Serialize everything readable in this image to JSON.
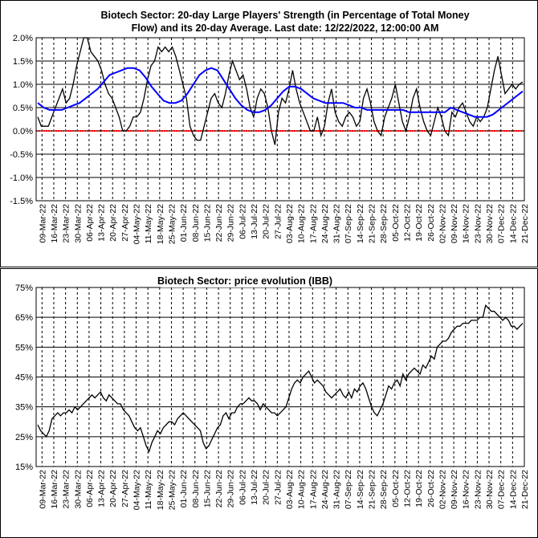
{
  "chart_data": [
    {
      "type": "line",
      "title_line1": "Biotech Sector: 20-day Large Players' Strength (in Percentage of Total Money",
      "title_line2": "Flow) and its 20-day Average. Last date: 12/22/2022, 12:00:00 AM",
      "ylim": [
        -1.5,
        2.0
      ],
      "y_ticks": [
        -1.5,
        -1.0,
        -0.5,
        0.0,
        0.5,
        1.0,
        1.5,
        2.0
      ],
      "y_tick_labels": [
        "-1.5%",
        "-1.0%",
        "-0.5%",
        "0.0%",
        "0.5%",
        "1.0%",
        "1.5%",
        "2.0%"
      ],
      "x_tick_labels": [
        "09-Mar-22",
        "16-Mar-22",
        "23-Mar-22",
        "30-Mar-22",
        "06-Apr-22",
        "13-Apr-22",
        "20-Apr-22",
        "27-Apr-22",
        "04-May-22",
        "11-May-22",
        "18-May-22",
        "25-May-22",
        "01-Jun-22",
        "08-Jun-22",
        "15-Jun-22",
        "22-Jun-22",
        "29-Jun-22",
        "06-Jul-22",
        "13-Jul-22",
        "20-Jul-22",
        "27-Jul-22",
        "03-Aug-22",
        "10-Aug-22",
        "17-Aug-22",
        "24-Aug-22",
        "31-Aug-22",
        "07-Sep-22",
        "14-Sep-22",
        "21-Sep-22",
        "28-Sep-22",
        "05-Oct-22",
        "12-Oct-22",
        "19-Oct-22",
        "26-Oct-22",
        "02-Nov-22",
        "09-Nov-22",
        "16-Nov-22",
        "23-Nov-22",
        "30-Nov-22",
        "07-Dec-22",
        "14-Dec-22",
        "21-Dec-22"
      ],
      "series": [
        {
          "color": "#000000",
          "values": [
            0.3,
            0.1,
            0.1,
            0.1,
            0.3,
            0.5,
            0.7,
            0.9,
            0.6,
            0.7,
            1.0,
            1.4,
            1.7,
            2.0,
            2.0,
            1.7,
            1.6,
            1.5,
            1.3,
            1.0,
            0.8,
            0.7,
            0.5,
            0.3,
            0.0,
            0.0,
            0.1,
            0.3,
            0.3,
            0.4,
            0.7,
            1.1,
            1.4,
            1.5,
            1.8,
            1.7,
            1.8,
            1.7,
            1.8,
            1.6,
            1.3,
            1.0,
            0.7,
            0.1,
            -0.1,
            -0.2,
            -0.2,
            0.1,
            0.4,
            0.7,
            0.8,
            0.6,
            0.5,
            0.8,
            1.2,
            1.5,
            1.3,
            1.1,
            1.2,
            0.9,
            0.5,
            0.3,
            0.7,
            0.9,
            0.8,
            0.5,
            0.0,
            -0.3,
            0.4,
            0.7,
            0.6,
            0.9,
            1.3,
            0.9,
            0.6,
            0.4,
            0.2,
            0.0,
            0.0,
            0.3,
            -0.1,
            0.1,
            0.6,
            0.9,
            0.4,
            0.2,
            0.1,
            0.3,
            0.4,
            0.3,
            0.1,
            0.2,
            0.7,
            0.9,
            0.6,
            0.2,
            0.0,
            -0.1,
            0.3,
            0.5,
            0.7,
            1.0,
            0.6,
            0.2,
            0.0,
            0.3,
            0.7,
            0.9,
            0.5,
            0.2,
            0.0,
            -0.1,
            0.2,
            0.5,
            0.3,
            0.0,
            -0.1,
            0.4,
            0.3,
            0.5,
            0.6,
            0.4,
            0.2,
            0.1,
            0.3,
            0.2,
            0.3,
            0.5,
            0.9,
            1.3,
            1.6,
            1.2,
            0.8,
            0.9,
            1.0,
            0.9,
            1.0,
            1.05
          ],
          "data_note_source": "black daily line"
        },
        {
          "color": "#0000ff",
          "values": [
            0.6,
            0.5,
            0.45,
            0.45,
            0.45,
            0.5,
            0.55,
            0.6,
            0.7,
            0.8,
            0.9,
            1.05,
            1.2,
            1.25,
            1.3,
            1.35,
            1.35,
            1.3,
            1.15,
            0.95,
            0.8,
            0.65,
            0.6,
            0.6,
            0.65,
            0.8,
            1.0,
            1.2,
            1.3,
            1.35,
            1.3,
            1.1,
            0.9,
            0.7,
            0.55,
            0.45,
            0.4,
            0.4,
            0.45,
            0.55,
            0.7,
            0.85,
            0.95,
            0.95,
            0.9,
            0.8,
            0.7,
            0.65,
            0.6,
            0.6,
            0.6,
            0.6,
            0.55,
            0.5,
            0.5,
            0.45,
            0.45,
            0.45,
            0.45,
            0.45,
            0.45,
            0.45,
            0.4,
            0.4,
            0.4,
            0.4,
            0.4,
            0.4,
            0.4,
            0.5,
            0.45,
            0.4,
            0.35,
            0.3,
            0.3,
            0.3,
            0.35,
            0.45,
            0.55,
            0.65,
            0.75,
            0.85
          ],
          "data_note_source": "blue 20-day average"
        }
      ],
      "zero_line_color": "#ff0000",
      "grid": true
    },
    {
      "type": "line",
      "title": "Biotech Sector: price evolution (IBB)",
      "ylim": [
        15,
        75
      ],
      "y_ticks": [
        15,
        25,
        35,
        45,
        55,
        65,
        75
      ],
      "y_tick_labels": [
        "15%",
        "25%",
        "35%",
        "45%",
        "55%",
        "65%",
        "75%"
      ],
      "x_tick_labels": [
        "09-Mar-22",
        "16-Mar-22",
        "23-Mar-22",
        "30-Mar-22",
        "06-Apr-22",
        "13-Apr-22",
        "20-Apr-22",
        "27-Apr-22",
        "04-May-22",
        "11-May-22",
        "18-May-22",
        "25-May-22",
        "01-Jun-22",
        "08-Jun-22",
        "15-Jun-22",
        "22-Jun-22",
        "29-Jun-22",
        "06-Jul-22",
        "13-Jul-22",
        "20-Jul-22",
        "27-Jul-22",
        "03-Aug-22",
        "10-Aug-22",
        "17-Aug-22",
        "24-Aug-22",
        "31-Aug-22",
        "07-Sep-22",
        "14-Sep-22",
        "21-Sep-22",
        "28-Sep-22",
        "05-Oct-22",
        "12-Oct-22",
        "19-Oct-22",
        "26-Oct-22",
        "02-Nov-22",
        "09-Nov-22",
        "16-Nov-22",
        "23-Nov-22",
        "30-Nov-22",
        "07-Dec-22",
        "14-Dec-22",
        "21-Dec-22"
      ],
      "series": [
        {
          "color": "#000000",
          "values": [
            29,
            27,
            26,
            25,
            27,
            31,
            32,
            33,
            32,
            33,
            33,
            34,
            33,
            35,
            34,
            35,
            36,
            37,
            38,
            39,
            38,
            39,
            40,
            38,
            37,
            39,
            38,
            37,
            36,
            36,
            34,
            33,
            32,
            30,
            28,
            27,
            28,
            25,
            22,
            20,
            23,
            25,
            27,
            26,
            28,
            29,
            30,
            30,
            29,
            31,
            32,
            33,
            32,
            31,
            30,
            29,
            28,
            27,
            23,
            21,
            22,
            24,
            26,
            28,
            29,
            32,
            33,
            31,
            33,
            33,
            35,
            36,
            36,
            37,
            38,
            37,
            37,
            36,
            34,
            36,
            35,
            34,
            33,
            33,
            32,
            33,
            34,
            35,
            38,
            41,
            43,
            44,
            43,
            45,
            46,
            47,
            45,
            43,
            44,
            43,
            42,
            40,
            39,
            38,
            39,
            40,
            41,
            39,
            38,
            40,
            38,
            41,
            40,
            42,
            43,
            41,
            38,
            35,
            33,
            32,
            34,
            36,
            39,
            42,
            41,
            43,
            44,
            42,
            46,
            44,
            46,
            47,
            48,
            47,
            46,
            49,
            48,
            50,
            52,
            51,
            55,
            56,
            57,
            57,
            58,
            60,
            61,
            62,
            62,
            63,
            63,
            63,
            64,
            64,
            64,
            65,
            65,
            69,
            68,
            67,
            67,
            66,
            65,
            64,
            65,
            64,
            62,
            62,
            61,
            62,
            63
          ],
          "data_note_source": "price line"
        }
      ],
      "grid": true
    }
  ]
}
